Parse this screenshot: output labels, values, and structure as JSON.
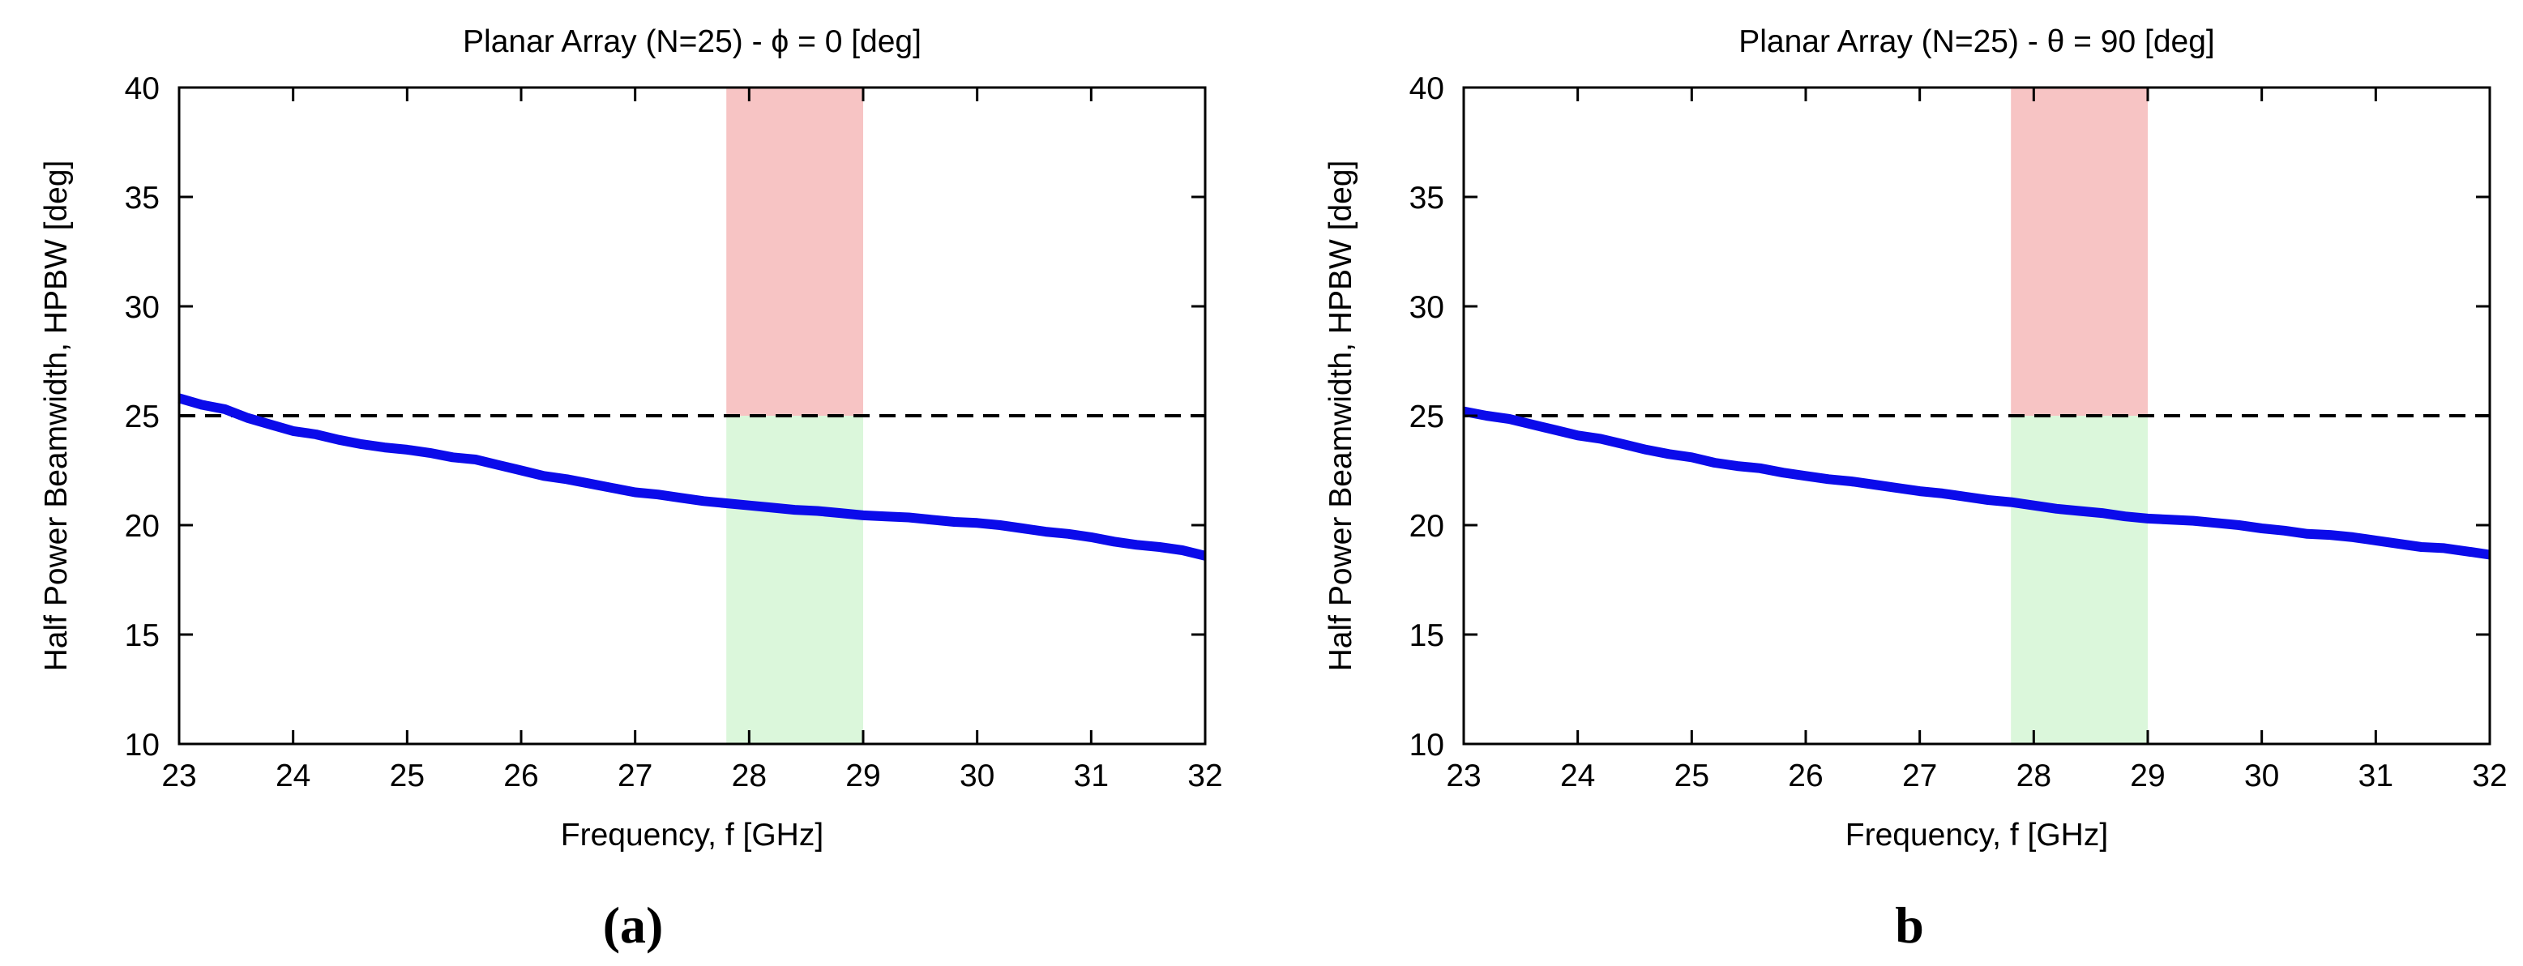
{
  "chart_data": [
    {
      "type": "line",
      "panel_label": "(a)",
      "title": "Planar Array (N=25) - ϕ = 0 [deg]",
      "xlabel": "Frequency, f [GHz]",
      "ylabel": "Half Power Beamwidth, HPBW [deg]",
      "xlim": [
        23,
        32
      ],
      "ylim": [
        10,
        40
      ],
      "xticks": [
        "23",
        "24",
        "25",
        "26",
        "27",
        "28",
        "29",
        "30",
        "31",
        "32"
      ],
      "yticks": [
        "10",
        "15",
        "20",
        "25",
        "30",
        "35",
        "40"
      ],
      "grid": false,
      "threshold": {
        "value": 25,
        "style": "dashed",
        "color": "#000000"
      },
      "band": {
        "x_range": [
          27.8,
          29.0
        ],
        "upper_color": "#f7c4c4",
        "lower_color": "#dbf7db"
      },
      "series": [
        {
          "name": "HPBW",
          "color": "#0b0bea",
          "x": [
            23.0,
            23.2,
            23.4,
            23.6,
            23.8,
            24.0,
            24.2,
            24.4,
            24.6,
            24.8,
            25.0,
            25.2,
            25.4,
            25.6,
            25.8,
            26.0,
            26.2,
            26.4,
            26.6,
            26.8,
            27.0,
            27.2,
            27.4,
            27.6,
            27.8,
            28.0,
            28.2,
            28.4,
            28.6,
            28.8,
            29.0,
            29.2,
            29.4,
            29.6,
            29.8,
            30.0,
            30.2,
            30.4,
            30.6,
            30.8,
            31.0,
            31.2,
            31.4,
            31.6,
            31.8,
            32.0
          ],
          "y": [
            25.8,
            25.5,
            25.3,
            24.9,
            24.6,
            24.3,
            24.15,
            23.9,
            23.7,
            23.55,
            23.45,
            23.3,
            23.1,
            23.0,
            22.75,
            22.5,
            22.25,
            22.1,
            21.9,
            21.7,
            21.5,
            21.4,
            21.25,
            21.1,
            21.0,
            20.9,
            20.8,
            20.7,
            20.65,
            20.55,
            20.45,
            20.4,
            20.35,
            20.25,
            20.15,
            20.1,
            20.0,
            19.85,
            19.7,
            19.6,
            19.45,
            19.25,
            19.1,
            19.0,
            18.85,
            18.6
          ]
        }
      ]
    },
    {
      "type": "line",
      "panel_label": "b",
      "title": "Planar Array (N=25) - θ = 90 [deg]",
      "xlabel": "Frequency, f [GHz]",
      "ylabel": "Half Power Beamwidth, HPBW [deg]",
      "xlim": [
        23,
        32
      ],
      "ylim": [
        10,
        40
      ],
      "xticks": [
        "23",
        "24",
        "25",
        "26",
        "27",
        "28",
        "29",
        "30",
        "31",
        "32"
      ],
      "yticks": [
        "10",
        "15",
        "20",
        "25",
        "30",
        "35",
        "40"
      ],
      "grid": false,
      "threshold": {
        "value": 25,
        "style": "dashed",
        "color": "#000000"
      },
      "band": {
        "x_range": [
          27.8,
          29.0
        ],
        "upper_color": "#f7c4c4",
        "lower_color": "#dbf7db"
      },
      "series": [
        {
          "name": "HPBW",
          "color": "#0b0bea",
          "x": [
            23.0,
            23.2,
            23.4,
            23.6,
            23.8,
            24.0,
            24.2,
            24.4,
            24.6,
            24.8,
            25.0,
            25.2,
            25.4,
            25.6,
            25.8,
            26.0,
            26.2,
            26.4,
            26.6,
            26.8,
            27.0,
            27.2,
            27.4,
            27.6,
            27.8,
            28.0,
            28.2,
            28.4,
            28.6,
            28.8,
            29.0,
            29.2,
            29.4,
            29.6,
            29.8,
            30.0,
            30.2,
            30.4,
            30.6,
            30.8,
            31.0,
            31.2,
            31.4,
            31.6,
            31.8,
            32.0
          ],
          "y": [
            25.2,
            25.0,
            24.85,
            24.6,
            24.35,
            24.1,
            23.95,
            23.7,
            23.45,
            23.25,
            23.1,
            22.85,
            22.7,
            22.6,
            22.4,
            22.25,
            22.1,
            22.0,
            21.85,
            21.7,
            21.55,
            21.45,
            21.3,
            21.15,
            21.05,
            20.9,
            20.75,
            20.65,
            20.55,
            20.4,
            20.3,
            20.25,
            20.2,
            20.1,
            20.0,
            19.85,
            19.75,
            19.6,
            19.55,
            19.45,
            19.3,
            19.15,
            19.0,
            18.95,
            18.8,
            18.65
          ]
        }
      ]
    }
  ]
}
